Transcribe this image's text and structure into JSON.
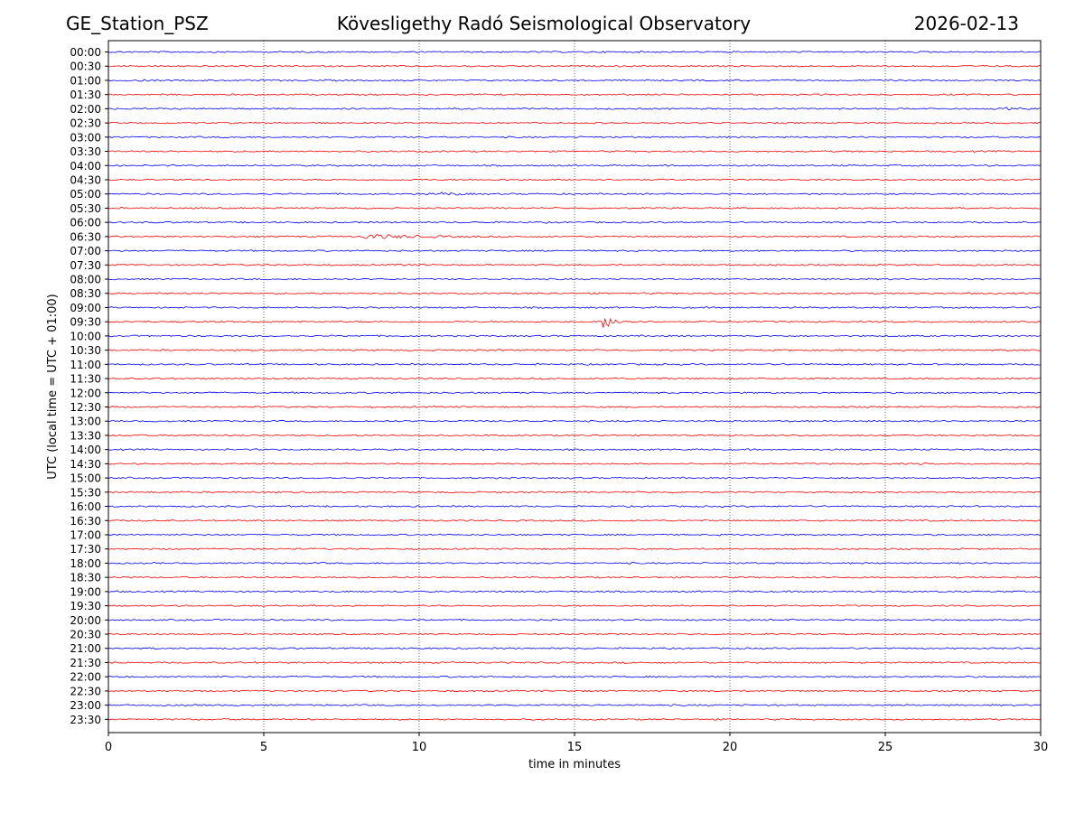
{
  "chart_data": {
    "type": "line",
    "chart_kind": "helicorder",
    "station": "GE_Station_PSZ",
    "title": "Kövesligethy Radó Seismological Observatory",
    "date": "2026-02-13",
    "xlabel": "time in minutes",
    "ylabel": "UTC (local time = UTC + 01:00)",
    "xlim": [
      0,
      30
    ],
    "xticks": [
      0,
      5,
      10,
      15,
      20,
      25,
      30
    ],
    "grid": "vertical dotted lines at x ticks",
    "row_labels": [
      "00:00",
      "00:30",
      "01:00",
      "01:30",
      "02:00",
      "02:30",
      "03:00",
      "03:30",
      "04:00",
      "04:30",
      "05:00",
      "05:30",
      "06:00",
      "06:30",
      "07:00",
      "07:30",
      "08:00",
      "08:30",
      "09:00",
      "09:30",
      "10:00",
      "10:30",
      "11:00",
      "11:30",
      "12:00",
      "12:30",
      "13:00",
      "13:30",
      "14:00",
      "14:30",
      "15:00",
      "15:30",
      "16:00",
      "16:30",
      "17:00",
      "17:30",
      "18:00",
      "18:30",
      "19:00",
      "19:30",
      "20:00",
      "20:30",
      "21:00",
      "21:30",
      "22:00",
      "22:30",
      "23:00",
      "23:30"
    ],
    "trace_colors": [
      "#0000ff",
      "#ff0000"
    ],
    "events": [
      {
        "row": "01:00",
        "start_min": 1.0,
        "duration_min": 0.7,
        "amplitude": 0.3
      },
      {
        "row": "02:00",
        "start_min": 28.8,
        "duration_min": 1.2,
        "amplitude": 0.35
      },
      {
        "row": "05:00",
        "start_min": 10.7,
        "duration_min": 1.5,
        "amplitude": 0.55
      },
      {
        "row": "06:30",
        "start_min": 8.2,
        "duration_min": 4.5,
        "amplitude": 0.8
      },
      {
        "row": "07:30",
        "start_min": 9.2,
        "duration_min": 1.3,
        "amplitude": 0.25
      },
      {
        "row": "09:30",
        "start_min": 15.9,
        "duration_min": 1.3,
        "amplitude": 2.2
      },
      {
        "row": "14:30",
        "start_min": 26.1,
        "duration_min": 0.3,
        "amplitude": 0.3
      },
      {
        "row": "15:00",
        "start_min": 14.8,
        "duration_min": 0.6,
        "amplitude": 0.2
      }
    ]
  }
}
